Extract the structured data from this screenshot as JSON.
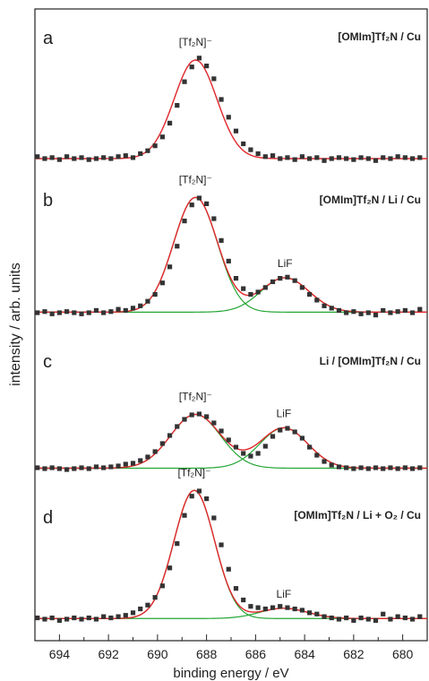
{
  "chart_data": {
    "type": "scatter",
    "xlabel": "binding energy / eV",
    "ylabel": "intensity / arb. units",
    "xlim": [
      695,
      679
    ],
    "x_reversed": true,
    "xticks": [
      694,
      692,
      690,
      688,
      686,
      684,
      682,
      680
    ],
    "colors": {
      "data": "#333333",
      "fit": "#e0262a",
      "component": "#22a533"
    },
    "panels": [
      {
        "letter": "a",
        "title": "[OMIm]Tf₂N / Cu",
        "peaks": [
          {
            "label": "[Tf₂N]⁻",
            "center": 688.45,
            "fwhm": 2.05,
            "height": 1.0
          }
        ],
        "data_points": [
          [
            694.9,
            0.02
          ],
          [
            694.6,
            0.0
          ],
          [
            694.3,
            0.01
          ],
          [
            694.0,
            -0.01
          ],
          [
            693.7,
            0.02
          ],
          [
            693.4,
            0.0
          ],
          [
            693.1,
            0.01
          ],
          [
            692.8,
            -0.01
          ],
          [
            692.5,
            0.0
          ],
          [
            692.2,
            0.01
          ],
          [
            691.9,
            0.0
          ],
          [
            691.6,
            0.02
          ],
          [
            691.3,
            0.03
          ],
          [
            691.0,
            0.01
          ],
          [
            690.7,
            0.05
          ],
          [
            690.4,
            0.08
          ],
          [
            690.1,
            0.13
          ],
          [
            689.8,
            0.22
          ],
          [
            689.5,
            0.36
          ],
          [
            689.2,
            0.54
          ],
          [
            688.9,
            0.78
          ],
          [
            688.6,
            0.93
          ],
          [
            688.3,
            1.02
          ],
          [
            688.0,
            0.94
          ],
          [
            687.7,
            0.81
          ],
          [
            687.4,
            0.6
          ],
          [
            687.1,
            0.42
          ],
          [
            686.8,
            0.28
          ],
          [
            686.5,
            0.15
          ],
          [
            686.2,
            0.09
          ],
          [
            685.9,
            0.05
          ],
          [
            685.6,
            0.02
          ],
          [
            685.3,
            0.03
          ],
          [
            685.0,
            0.0
          ],
          [
            684.7,
            0.01
          ],
          [
            684.4,
            -0.01
          ],
          [
            684.1,
            0.02
          ],
          [
            683.8,
            0.0
          ],
          [
            683.5,
            0.01
          ],
          [
            683.2,
            -0.02
          ],
          [
            682.9,
            0.0
          ],
          [
            682.6,
            0.01
          ],
          [
            682.3,
            0.0
          ],
          [
            682.0,
            -0.01
          ],
          [
            681.7,
            0.01
          ],
          [
            681.4,
            0.0
          ],
          [
            681.1,
            -0.02
          ],
          [
            680.8,
            0.01
          ],
          [
            680.5,
            0.0
          ],
          [
            680.2,
            0.02
          ],
          [
            679.9,
            0.01
          ],
          [
            679.6,
            0.0
          ],
          [
            679.3,
            0.01
          ]
        ]
      },
      {
        "letter": "b",
        "title": "[OMIm]Tf₂N / Li / Cu",
        "peaks": [
          {
            "label": "[Tf₂N]⁻",
            "center": 688.45,
            "fwhm": 2.1,
            "height": 1.0
          },
          {
            "label": "LiF",
            "center": 684.8,
            "fwhm": 2.3,
            "height": 0.3
          }
        ],
        "data_points": [
          [
            694.9,
            0.0
          ],
          [
            694.6,
            0.01
          ],
          [
            694.3,
            -0.01
          ],
          [
            694.0,
            0.0
          ],
          [
            693.7,
            0.01
          ],
          [
            693.4,
            0.0
          ],
          [
            693.1,
            -0.01
          ],
          [
            692.8,
            0.0
          ],
          [
            692.5,
            0.02
          ],
          [
            692.2,
            0.0
          ],
          [
            691.9,
            0.01
          ],
          [
            691.6,
            0.03
          ],
          [
            691.3,
            0.02
          ],
          [
            691.0,
            0.04
          ],
          [
            690.7,
            0.06
          ],
          [
            690.4,
            0.1
          ],
          [
            690.1,
            0.16
          ],
          [
            689.8,
            0.26
          ],
          [
            689.5,
            0.4
          ],
          [
            689.2,
            0.58
          ],
          [
            688.9,
            0.8
          ],
          [
            688.6,
            0.94
          ],
          [
            688.3,
            1.0
          ],
          [
            688.0,
            0.95
          ],
          [
            687.7,
            0.82
          ],
          [
            687.4,
            0.63
          ],
          [
            687.1,
            0.45
          ],
          [
            686.8,
            0.3
          ],
          [
            686.5,
            0.21
          ],
          [
            686.2,
            0.16
          ],
          [
            685.9,
            0.18
          ],
          [
            685.6,
            0.22
          ],
          [
            685.3,
            0.27
          ],
          [
            685.0,
            0.3
          ],
          [
            684.7,
            0.31
          ],
          [
            684.4,
            0.28
          ],
          [
            684.1,
            0.22
          ],
          [
            683.8,
            0.16
          ],
          [
            683.5,
            0.11
          ],
          [
            683.2,
            0.06
          ],
          [
            682.9,
            0.04
          ],
          [
            682.6,
            0.02
          ],
          [
            682.3,
            0.0
          ],
          [
            682.0,
            0.01
          ],
          [
            681.7,
            -0.01
          ],
          [
            681.4,
            0.0
          ],
          [
            681.1,
            -0.02
          ],
          [
            680.8,
            0.02
          ],
          [
            680.5,
            0.0
          ],
          [
            680.2,
            0.01
          ],
          [
            679.9,
            0.02
          ],
          [
            679.6,
            0.0
          ],
          [
            679.3,
            0.03
          ]
        ]
      },
      {
        "letter": "c",
        "title": "Li / [OMIm]Tf₂N / Cu",
        "peaks": [
          {
            "label": "[Tf₂N]⁻",
            "center": 688.45,
            "fwhm": 2.4,
            "height": 0.6
          },
          {
            "label": "LiF",
            "center": 684.85,
            "fwhm": 2.3,
            "height": 0.45
          }
        ],
        "data_points": [
          [
            694.9,
            0.01
          ],
          [
            694.6,
            0.0
          ],
          [
            694.3,
            0.01
          ],
          [
            694.0,
            0.0
          ],
          [
            693.7,
            -0.01
          ],
          [
            693.4,
            0.0
          ],
          [
            693.1,
            0.01
          ],
          [
            692.8,
            0.0
          ],
          [
            692.5,
            0.02
          ],
          [
            692.2,
            0.01
          ],
          [
            691.9,
            0.02
          ],
          [
            691.6,
            0.03
          ],
          [
            691.3,
            0.05
          ],
          [
            691.0,
            0.06
          ],
          [
            690.7,
            0.09
          ],
          [
            690.4,
            0.13
          ],
          [
            690.1,
            0.19
          ],
          [
            689.8,
            0.28
          ],
          [
            689.5,
            0.37
          ],
          [
            689.2,
            0.47
          ],
          [
            688.9,
            0.55
          ],
          [
            688.6,
            0.6
          ],
          [
            688.3,
            0.61
          ],
          [
            688.0,
            0.58
          ],
          [
            687.7,
            0.51
          ],
          [
            687.4,
            0.42
          ],
          [
            687.1,
            0.32
          ],
          [
            686.8,
            0.24
          ],
          [
            686.5,
            0.17
          ],
          [
            686.2,
            0.14
          ],
          [
            685.9,
            0.17
          ],
          [
            685.6,
            0.25
          ],
          [
            685.3,
            0.36
          ],
          [
            685.0,
            0.43
          ],
          [
            684.7,
            0.45
          ],
          [
            684.4,
            0.41
          ],
          [
            684.1,
            0.34
          ],
          [
            683.8,
            0.24
          ],
          [
            683.5,
            0.15
          ],
          [
            683.2,
            0.08
          ],
          [
            682.9,
            0.04
          ],
          [
            682.6,
            0.02
          ],
          [
            682.3,
            0.01
          ],
          [
            682.0,
            0.0
          ],
          [
            681.7,
            0.01
          ],
          [
            681.4,
            0.0
          ],
          [
            681.1,
            0.01
          ],
          [
            680.8,
            0.0
          ],
          [
            680.5,
            0.01
          ],
          [
            680.2,
            0.0
          ],
          [
            679.9,
            0.01
          ],
          [
            679.6,
            0.0
          ],
          [
            679.3,
            0.01
          ]
        ]
      },
      {
        "letter": "d",
        "title": "[OMIm]Tf₂N / Li + O₂ / Cu",
        "peaks": [
          {
            "label": "[Tf₂N]⁻",
            "center": 688.5,
            "fwhm": 1.95,
            "height": 1.0
          },
          {
            "label": "LiF",
            "center": 684.85,
            "fwhm": 2.3,
            "height": 0.08
          }
        ],
        "data_points": [
          [
            694.9,
            0.01
          ],
          [
            694.6,
            0.0
          ],
          [
            694.3,
            0.01
          ],
          [
            694.0,
            -0.01
          ],
          [
            693.7,
            0.0
          ],
          [
            693.4,
            0.01
          ],
          [
            693.1,
            0.0
          ],
          [
            692.8,
            0.01
          ],
          [
            692.5,
            0.0
          ],
          [
            692.2,
            0.02
          ],
          [
            691.9,
            0.01
          ],
          [
            691.6,
            0.02
          ],
          [
            691.3,
            0.03
          ],
          [
            691.0,
            0.05
          ],
          [
            690.7,
            0.08
          ],
          [
            690.4,
            0.11
          ],
          [
            690.1,
            0.17
          ],
          [
            689.8,
            0.26
          ],
          [
            689.5,
            0.4
          ],
          [
            689.2,
            0.59
          ],
          [
            688.9,
            0.81
          ],
          [
            688.6,
            0.96
          ],
          [
            688.3,
            1.0
          ],
          [
            688.0,
            0.94
          ],
          [
            687.7,
            0.79
          ],
          [
            687.4,
            0.58
          ],
          [
            687.1,
            0.39
          ],
          [
            686.8,
            0.24
          ],
          [
            686.5,
            0.15
          ],
          [
            686.2,
            0.1
          ],
          [
            685.9,
            0.09
          ],
          [
            685.6,
            0.08
          ],
          [
            685.3,
            0.09
          ],
          [
            685.0,
            0.1
          ],
          [
            684.7,
            0.09
          ],
          [
            684.4,
            0.08
          ],
          [
            684.1,
            0.07
          ],
          [
            683.8,
            0.05
          ],
          [
            683.5,
            0.04
          ],
          [
            683.2,
            0.02
          ],
          [
            682.9,
            0.01
          ],
          [
            682.6,
            0.0
          ],
          [
            682.3,
            0.01
          ],
          [
            682.0,
            -0.01
          ],
          [
            681.7,
            0.01
          ],
          [
            681.4,
            0.0
          ],
          [
            681.1,
            -0.01
          ],
          [
            680.8,
            0.04
          ],
          [
            680.5,
            0.0
          ],
          [
            680.2,
            0.02
          ],
          [
            679.9,
            0.01
          ],
          [
            679.6,
            0.0
          ],
          [
            679.3,
            0.02
          ]
        ]
      }
    ]
  }
}
